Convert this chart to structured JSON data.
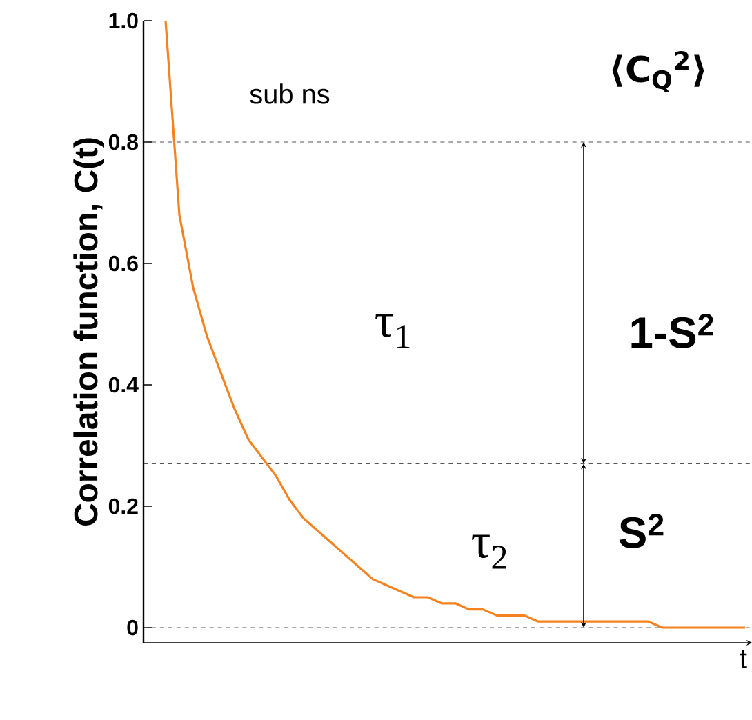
{
  "chart_data": {
    "type": "line",
    "xlabel": "t",
    "ylabel": "Correlation function, C(t)",
    "categories": [
      null,
      null,
      null,
      null,
      null,
      null,
      null,
      null,
      null,
      null,
      null,
      null,
      null,
      null,
      null,
      null,
      null,
      null,
      null,
      null,
      null,
      null,
      null,
      null,
      null,
      null,
      null,
      null,
      null,
      null,
      null,
      null,
      null,
      null,
      null,
      null,
      null,
      null,
      null,
      null,
      null,
      null,
      null
    ],
    "values": [
      1.0,
      0.68,
      0.56,
      0.48,
      0.42,
      0.36,
      0.31,
      0.28,
      0.25,
      0.21,
      0.18,
      0.16,
      0.14,
      0.12,
      0.1,
      0.08,
      0.07,
      0.06,
      0.05,
      0.05,
      0.04,
      0.04,
      0.03,
      0.03,
      0.02,
      0.02,
      0.02,
      0.01,
      0.01,
      0.01,
      0.01,
      0.01,
      0.01,
      0.01,
      0.01,
      0.01,
      0.0,
      0.0,
      0.0,
      0.0,
      0.0,
      0.0,
      0.0
    ],
    "color": "#f5821f",
    "line_style": "solid",
    "ylim": [
      -0.025,
      1.0
    ],
    "yticks": [
      0,
      0.2,
      0.4,
      0.6,
      0.8,
      {
        "value": 1.0,
        "label": "1.0"
      }
    ],
    "tick_labels": "y",
    "ref_lines": [
      {
        "axis": "y",
        "value": 0.8,
        "color": "#555555",
        "line_style": "dashed"
      },
      {
        "axis": "y",
        "value": 0.27,
        "color": "#555555",
        "line_style": "dashed"
      },
      {
        "axis": "y",
        "value": 0,
        "color": "#555555",
        "line_style": "dashed"
      }
    ],
    "annotations": [
      "sub ns",
      "⟨C$_{Q}$$^{2}$⟩",
      "τ$_{1}$",
      "1-S$^{2}$",
      "τ$_{2}$",
      "S$^{2}$"
    ]
  }
}
